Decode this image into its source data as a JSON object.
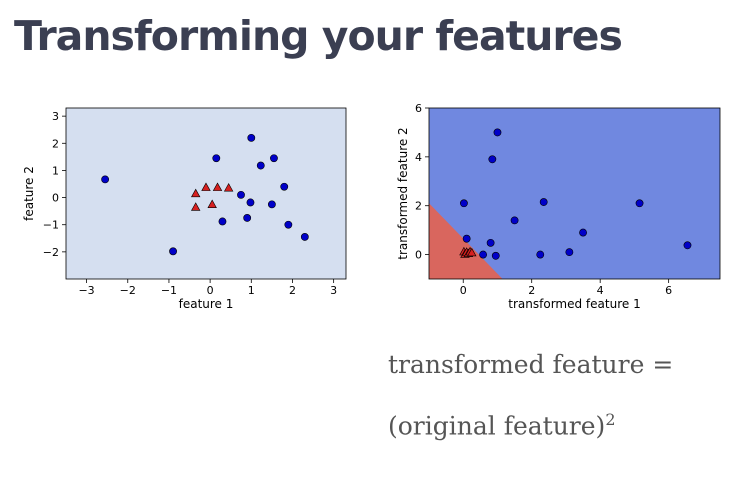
{
  "slide": {
    "title": "Transforming your features",
    "formula_line1": "transformed feature =",
    "formula_line2_main": "(original feature)",
    "formula_line2_exp": "2"
  },
  "colors": {
    "title": "#3b3f52",
    "left_bg": "#d5dff0",
    "right_blue_region": "#7088e0",
    "right_red_region": "#d9665e",
    "blue_point": "#0000c8",
    "red_point": "#d62020"
  },
  "chart_data": [
    {
      "type": "scatter",
      "xlabel": "feature 1",
      "ylabel": "feature 2",
      "xlim": [
        -3.5,
        3.3
      ],
      "ylim": [
        -3.0,
        3.3
      ],
      "xticks": [
        -3,
        -2,
        -1,
        0,
        1,
        2,
        3
      ],
      "xtick_labels": [
        "−3",
        "−2",
        "−1",
        "0",
        "1",
        "2",
        "3"
      ],
      "yticks": [
        -2,
        -1,
        0,
        1,
        2,
        3
      ],
      "ytick_labels": [
        "−2",
        "−1",
        "0",
        "1",
        "2",
        "3"
      ],
      "series": [
        {
          "marker": "circle",
          "color": "blue",
          "points": [
            [
              -2.55,
              0.67
            ],
            [
              -0.9,
              -1.98
            ],
            [
              0.15,
              1.45
            ],
            [
              0.3,
              -0.88
            ],
            [
              0.75,
              0.1
            ],
            [
              0.9,
              -0.75
            ],
            [
              0.98,
              -0.18
            ],
            [
              1.0,
              2.2
            ],
            [
              1.23,
              1.18
            ],
            [
              1.5,
              -0.25
            ],
            [
              1.55,
              1.45
            ],
            [
              1.8,
              0.4
            ],
            [
              1.9,
              -1.0
            ],
            [
              2.3,
              -1.45
            ]
          ]
        },
        {
          "marker": "triangle",
          "color": "red",
          "points": [
            [
              -0.35,
              0.15
            ],
            [
              -0.35,
              -0.35
            ],
            [
              -0.1,
              0.38
            ],
            [
              0.05,
              -0.25
            ],
            [
              0.18,
              0.38
            ],
            [
              0.45,
              0.36
            ]
          ]
        }
      ]
    },
    {
      "type": "scatter",
      "xlabel": "transformed feature 1",
      "ylabel": "transformed feature 2",
      "xlim": [
        -1.0,
        7.5
      ],
      "ylim": [
        -1.0,
        6.0
      ],
      "xticks": [
        0,
        2,
        4,
        6
      ],
      "xtick_labels": [
        "0",
        "2",
        "4",
        "6"
      ],
      "yticks": [
        0,
        2,
        4,
        6
      ],
      "ytick_labels": [
        "0",
        "2",
        "4",
        "6"
      ],
      "series": [
        {
          "marker": "circle",
          "color": "blue",
          "points": [
            [
              0.02,
              2.1
            ],
            [
              0.1,
              0.65
            ],
            [
              0.58,
              0.0
            ],
            [
              0.8,
              0.48
            ],
            [
              0.85,
              3.9
            ],
            [
              0.95,
              -0.05
            ],
            [
              1.0,
              5.0
            ],
            [
              1.5,
              1.4
            ],
            [
              2.25,
              0.0
            ],
            [
              2.35,
              2.15
            ],
            [
              3.1,
              0.1
            ],
            [
              3.5,
              0.9
            ],
            [
              5.15,
              2.1
            ],
            [
              6.55,
              0.38
            ]
          ]
        },
        {
          "marker": "triangle",
          "color": "red",
          "points": [
            [
              0.02,
              0.12
            ],
            [
              0.05,
              0.02
            ],
            [
              0.1,
              0.1
            ],
            [
              0.15,
              0.05
            ],
            [
              0.2,
              0.12
            ],
            [
              0.25,
              0.08
            ]
          ]
        }
      ]
    }
  ]
}
